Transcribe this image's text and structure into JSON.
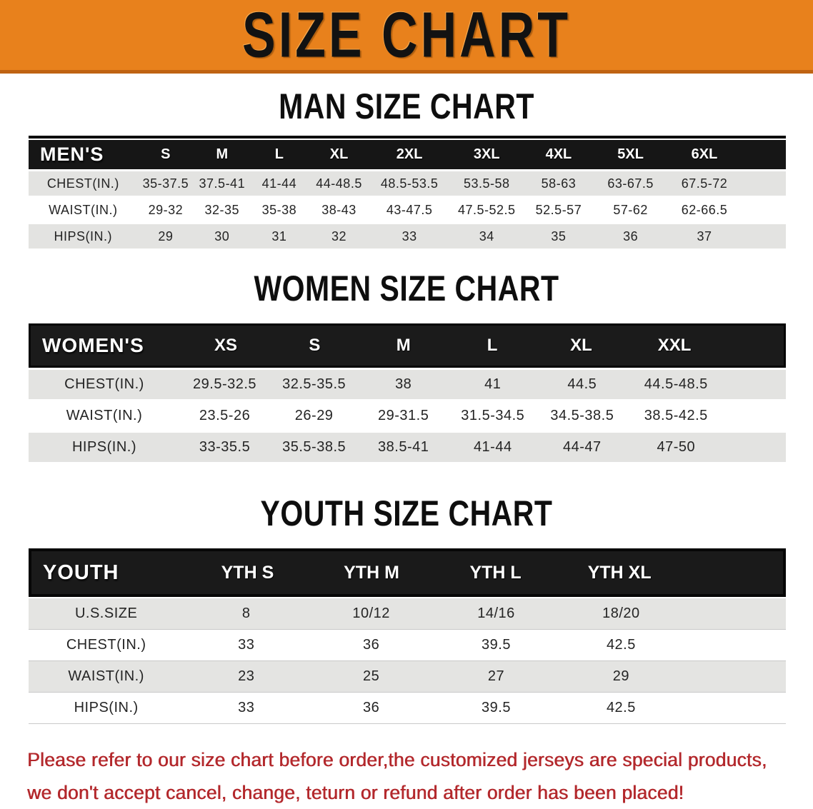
{
  "banner": {
    "title": "SIZE CHART"
  },
  "colors": {
    "banner_bg": "#E8811C",
    "banner_border": "#BF6312",
    "header_bar": "#161616",
    "row_gray": "#E3E3E1",
    "row_white": "#FFFFFF",
    "note_red": "#B3282C"
  },
  "sections": [
    {
      "title": "MAN SIZE CHART",
      "header_label": "MEN'S",
      "columns": [
        "S",
        "M",
        "L",
        "XL",
        "2XL",
        "3XL",
        "4XL",
        "5XL",
        "6XL"
      ],
      "rows": [
        {
          "label": "CHEST(IN.)",
          "values": [
            "35-37.5",
            "37.5-41",
            "41-44",
            "44-48.5",
            "48.5-53.5",
            "53.5-58",
            "58-63",
            "63-67.5",
            "67.5-72"
          ]
        },
        {
          "label": "WAIST(IN.)",
          "values": [
            "29-32",
            "32-35",
            "35-38",
            "38-43",
            "43-47.5",
            "47.5-52.5",
            "52.5-57",
            "57-62",
            "62-66.5"
          ]
        },
        {
          "label": "HIPS(IN.)",
          "values": [
            "29",
            "30",
            "31",
            "32",
            "33",
            "34",
            "35",
            "36",
            "37"
          ]
        }
      ]
    },
    {
      "title": "WOMEN SIZE CHART",
      "header_label": "WOMEN'S",
      "columns": [
        "XS",
        "S",
        "M",
        "L",
        "XL",
        "XXL"
      ],
      "rows": [
        {
          "label": "CHEST(IN.)",
          "values": [
            "29.5-32.5",
            "32.5-35.5",
            "38",
            "41",
            "44.5",
            "44.5-48.5"
          ]
        },
        {
          "label": "WAIST(IN.)",
          "values": [
            "23.5-26",
            "26-29",
            "29-31.5",
            "31.5-34.5",
            "34.5-38.5",
            "38.5-42.5"
          ]
        },
        {
          "label": "HIPS(IN.)",
          "values": [
            "33-35.5",
            "35.5-38.5",
            "38.5-41",
            "41-44",
            "44-47",
            "47-50"
          ]
        }
      ]
    },
    {
      "title": "YOUTH SIZE CHART",
      "header_label": "YOUTH",
      "columns": [
        "YTH S",
        "YTH M",
        "YTH L",
        "YTH XL"
      ],
      "rows": [
        {
          "label": "U.S.SIZE",
          "values": [
            "8",
            "10/12",
            "14/16",
            "18/20"
          ]
        },
        {
          "label": "CHEST(IN.)",
          "values": [
            "33",
            "36",
            "39.5",
            "42.5"
          ]
        },
        {
          "label": "WAIST(IN.)",
          "values": [
            "23",
            "25",
            "27",
            "29"
          ]
        },
        {
          "label": "HIPS(IN.)",
          "values": [
            "33",
            "36",
            "39.5",
            "42.5"
          ]
        }
      ]
    }
  ],
  "footer_note": {
    "line1": "Please refer to our size chart before order,the customized jerseys are special products,",
    "line2": "we don't accept cancel, change, teturn or refund after order has been placed!"
  }
}
